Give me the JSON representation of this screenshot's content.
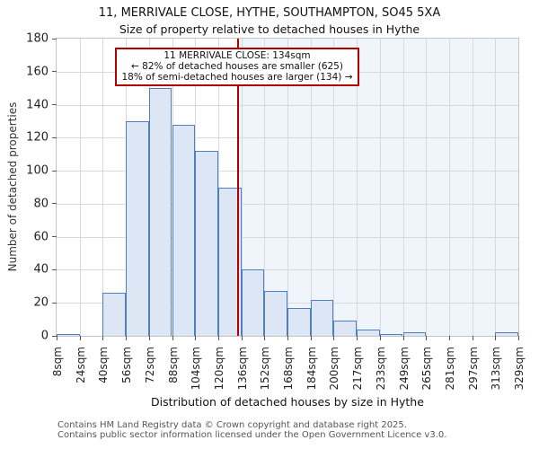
{
  "chart_data": {
    "type": "bar",
    "title": "11, MERRIVALE CLOSE, HYTHE, SOUTHAMPTON, SO45 5XA",
    "subtitle": "Size of property relative to detached houses in Hythe",
    "xlabel": "Distribution of detached houses by size in Hythe",
    "ylabel": "Number of detached properties",
    "bin_edges": [
      8,
      24,
      40,
      56,
      72,
      88,
      104,
      120,
      136,
      152,
      168,
      184,
      200,
      217,
      233,
      249,
      265,
      281,
      297,
      313,
      329
    ],
    "x_tick_labels": [
      "8sqm",
      "24sqm",
      "40sqm",
      "56sqm",
      "72sqm",
      "88sqm",
      "104sqm",
      "120sqm",
      "136sqm",
      "152sqm",
      "168sqm",
      "184sqm",
      "200sqm",
      "217sqm",
      "233sqm",
      "249sqm",
      "265sqm",
      "281sqm",
      "297sqm",
      "313sqm",
      "329sqm"
    ],
    "values": [
      1,
      0,
      26,
      130,
      150,
      128,
      112,
      90,
      40,
      27,
      17,
      22,
      9,
      4,
      1,
      2,
      0,
      0,
      0,
      2
    ],
    "ylim": [
      0,
      180
    ],
    "y_tick_step": 20,
    "grid": true,
    "legend": "none",
    "marker": {
      "x_value": 134
    },
    "annotation_lines": [
      "11 MERRIVALE CLOSE: 134sqm",
      "← 82% of detached houses are smaller (625)",
      "18% of semi-detached houses are larger (134) →"
    ],
    "colors": {
      "bar_fill": "#dce6f4",
      "bar_edge": "#4e7fc0",
      "marker_red": "#b00000",
      "region_right_fill": "#f0f4fb",
      "gridline": "#d9d9d9"
    }
  },
  "footer": {
    "line1": "Contains HM Land Registry data © Crown copyright and database right 2025.",
    "line2": "Contains public sector information licensed under the Open Government Licence v3.0."
  }
}
